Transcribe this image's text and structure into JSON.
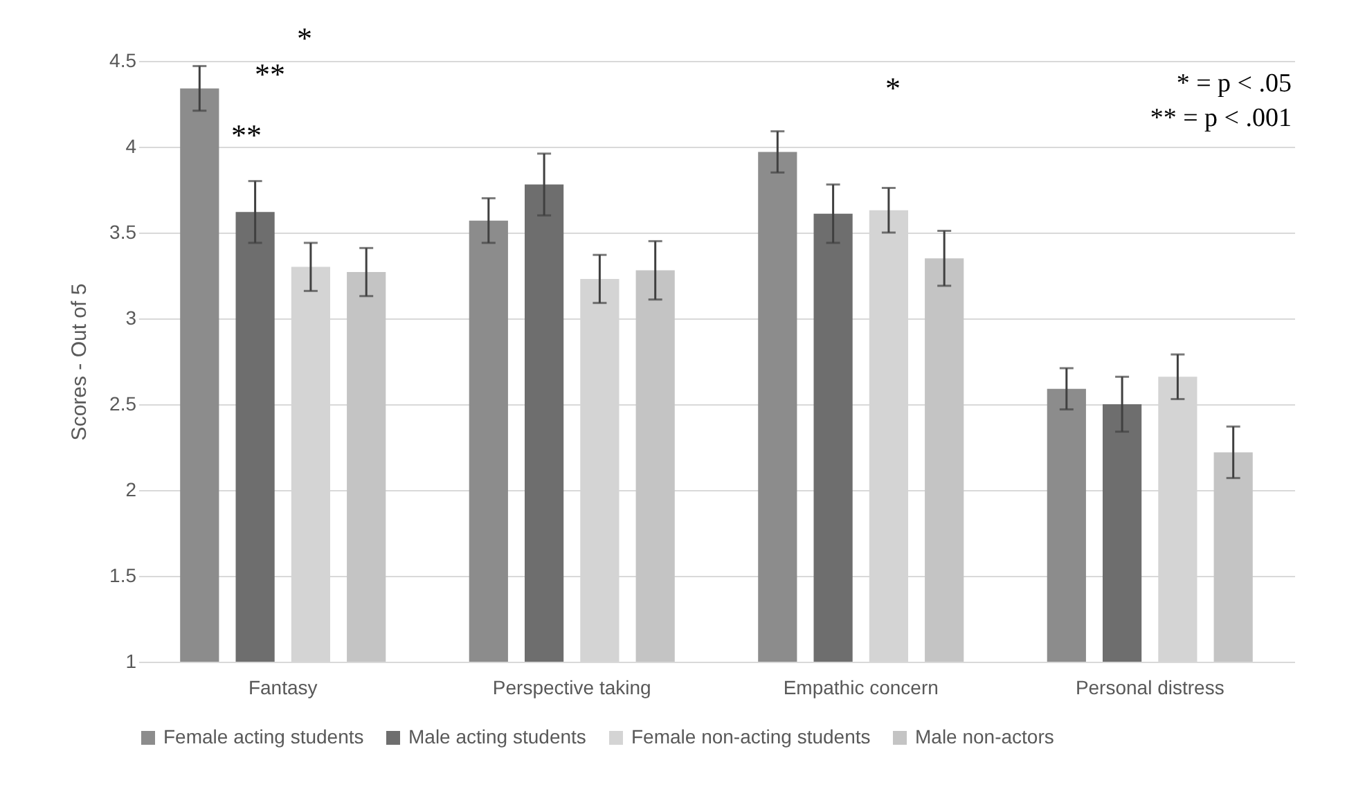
{
  "chart_data": {
    "type": "bar",
    "ylabel": "Scores - Out of 5",
    "categories": [
      "Fantasy",
      "Perspective taking",
      "Empathic concern",
      "Personal distress"
    ],
    "series": [
      {
        "name": "Female acting students",
        "color": "#8c8c8c",
        "values": [
          4.34,
          3.57,
          3.97,
          2.59
        ],
        "errors": [
          0.13,
          0.13,
          0.12,
          0.12
        ]
      },
      {
        "name": "Male acting students",
        "color": "#6e6e6e",
        "values": [
          3.62,
          3.78,
          3.61,
          2.5
        ],
        "errors": [
          0.18,
          0.18,
          0.17,
          0.16
        ]
      },
      {
        "name": "Female non-acting students",
        "color": "#d4d4d4",
        "values": [
          3.3,
          3.23,
          3.63,
          2.66
        ],
        "errors": [
          0.14,
          0.14,
          0.13,
          0.13
        ]
      },
      {
        "name": "Male non-actors",
        "color": "#c4c4c4",
        "values": [
          3.27,
          3.28,
          3.35,
          2.22
        ],
        "errors": [
          0.14,
          0.17,
          0.16,
          0.15
        ]
      }
    ],
    "ylim": [
      1,
      4.5
    ],
    "yticks": [
      1,
      1.5,
      2,
      2.5,
      3,
      3.5,
      4,
      4.5
    ],
    "grid": "y",
    "legend": "bottom",
    "annotations": [
      "*",
      "**",
      "**",
      "*",
      "* = p < .05",
      "** = p < .001"
    ]
  }
}
